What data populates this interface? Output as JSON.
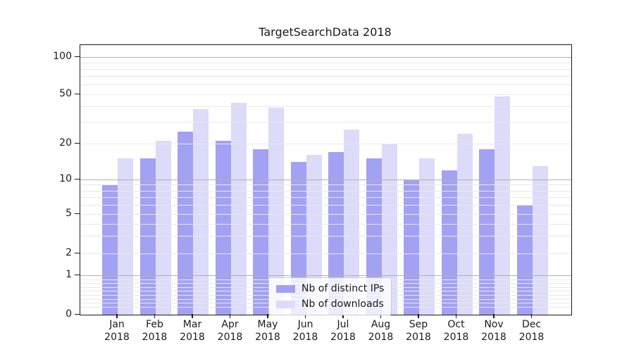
{
  "chart_data": {
    "type": "bar",
    "title": "TargetSearchData 2018",
    "categories": [
      "Jan",
      "Feb",
      "Mar",
      "Apr",
      "May",
      "Jun",
      "Jul",
      "Aug",
      "Sep",
      "Oct",
      "Nov",
      "Dec"
    ],
    "year_label": "2018",
    "series": [
      {
        "name": "Nb of distinct IPs",
        "color": "#a3a1f3",
        "values": [
          9,
          15,
          25,
          21,
          18,
          14,
          17,
          15,
          10,
          12,
          18,
          6
        ]
      },
      {
        "name": "Nb of downloads",
        "color": "#dcdbfa",
        "values": [
          15,
          21,
          38,
          43,
          39,
          16,
          26,
          20,
          15,
          24,
          48,
          13
        ]
      }
    ],
    "yscale": "symlog",
    "y_ticks": [
      0,
      1,
      2,
      5,
      10,
      20,
      50,
      100
    ],
    "ylim": [
      0,
      120
    ],
    "grid": true,
    "legend_position": "lower-center"
  },
  "colors": {
    "major_grid": "#b0b0b0",
    "minor_grid": "#e8e8e8",
    "axis": "#1a1a1a",
    "text": "#262626"
  }
}
